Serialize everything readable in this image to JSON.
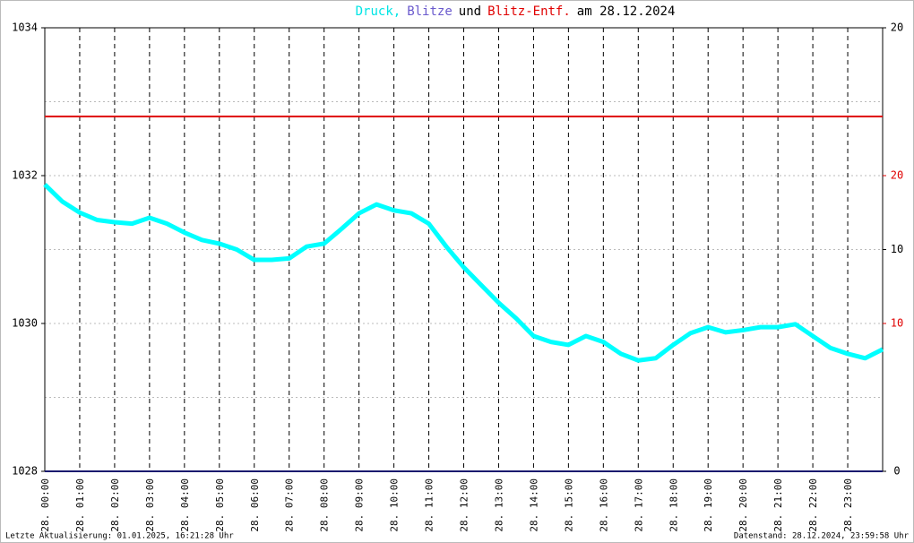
{
  "chart_data": {
    "type": "line",
    "title_parts": [
      {
        "text": "Druck,",
        "color": "#00e5e5"
      },
      {
        "text": "Blitze",
        "color": "#6a5acd"
      },
      {
        "text": "und",
        "color": "#000000"
      },
      {
        "text": "Blitz-Entf.",
        "color": "#e00000"
      },
      {
        "text": "am 28.12.2024",
        "color": "#000000"
      }
    ],
    "xlim": [
      0,
      24
    ],
    "xticks": [
      {
        "value": 0,
        "label": "28. 00:00"
      },
      {
        "value": 1,
        "label": "28. 01:00"
      },
      {
        "value": 2,
        "label": "28. 02:00"
      },
      {
        "value": 3,
        "label": "28. 03:00"
      },
      {
        "value": 4,
        "label": "28. 04:00"
      },
      {
        "value": 5,
        "label": "28. 05:00"
      },
      {
        "value": 6,
        "label": "28. 06:00"
      },
      {
        "value": 7,
        "label": "28. 07:00"
      },
      {
        "value": 8,
        "label": "28. 08:00"
      },
      {
        "value": 9,
        "label": "28. 09:00"
      },
      {
        "value": 10,
        "label": "28. 10:00"
      },
      {
        "value": 11,
        "label": "28. 11:00"
      },
      {
        "value": 12,
        "label": "28. 12:00"
      },
      {
        "value": 13,
        "label": "28. 13:00"
      },
      {
        "value": 14,
        "label": "28. 14:00"
      },
      {
        "value": 15,
        "label": "28. 15:00"
      },
      {
        "value": 16,
        "label": "28. 16:00"
      },
      {
        "value": 17,
        "label": "28. 17:00"
      },
      {
        "value": 18,
        "label": "28. 18:00"
      },
      {
        "value": 19,
        "label": "28. 19:00"
      },
      {
        "value": 20,
        "label": "28. 20:00"
      },
      {
        "value": 21,
        "label": "28. 21:00"
      },
      {
        "value": 22,
        "label": "28. 22:00"
      },
      {
        "value": 23,
        "label": "28. 23:00"
      }
    ],
    "ylim": [
      1028,
      1034
    ],
    "yticks": [
      1028,
      1030,
      1032,
      1034
    ],
    "ygrid": [
      1029,
      1030,
      1031,
      1032,
      1033
    ],
    "y2lim": [
      0,
      20
    ],
    "y2ticks": [
      0,
      10,
      20
    ],
    "y3lim": [
      0,
      30
    ],
    "y3ticks": [
      10,
      20
    ],
    "series": [
      {
        "name": "Druck",
        "color": "#00ffff",
        "axis": "y",
        "x": [
          0,
          0.5,
          1,
          1.5,
          2,
          2.5,
          3,
          3.5,
          4,
          4.5,
          5,
          5.5,
          6,
          6.5,
          7,
          7.5,
          8,
          8.5,
          9,
          9.5,
          10,
          10.5,
          11,
          11.5,
          12,
          12.5,
          13,
          13.5,
          14,
          14.5,
          15,
          15.5,
          16,
          16.5,
          17,
          17.5,
          18,
          18.5,
          19,
          19.5,
          20,
          20.5,
          21,
          21.5,
          22,
          22.5,
          23,
          23.5,
          24
        ],
        "values": [
          1031.88,
          1031.65,
          1031.5,
          1031.4,
          1031.37,
          1031.35,
          1031.43,
          1031.35,
          1031.23,
          1031.13,
          1031.08,
          1031.0,
          1030.86,
          1030.86,
          1030.88,
          1031.04,
          1031.08,
          1031.28,
          1031.49,
          1031.61,
          1031.53,
          1031.49,
          1031.35,
          1031.04,
          1030.76,
          1030.52,
          1030.28,
          1030.07,
          1029.83,
          1029.75,
          1029.71,
          1029.83,
          1029.75,
          1029.59,
          1029.5,
          1029.53,
          1029.71,
          1029.87,
          1029.95,
          1029.88,
          1029.91,
          1029.95,
          1029.95,
          1029.99,
          1029.83,
          1029.67,
          1029.59,
          1029.53,
          1029.65
        ]
      },
      {
        "name": "Blitze",
        "color": "#1a1a6e",
        "axis": "y2",
        "x": [
          0,
          24
        ],
        "values": [
          0,
          0
        ]
      },
      {
        "name": "Blitz-Entf.",
        "color": "#e00000",
        "axis": "y3",
        "x": [
          0,
          24
        ],
        "values": [
          24,
          24
        ]
      }
    ],
    "footer_left": "Letzte Aktualisierung: 01.01.2025, 16:21:28 Uhr",
    "footer_right": "Datenstand: 28.12.2024, 23:59:58 Uhr"
  }
}
